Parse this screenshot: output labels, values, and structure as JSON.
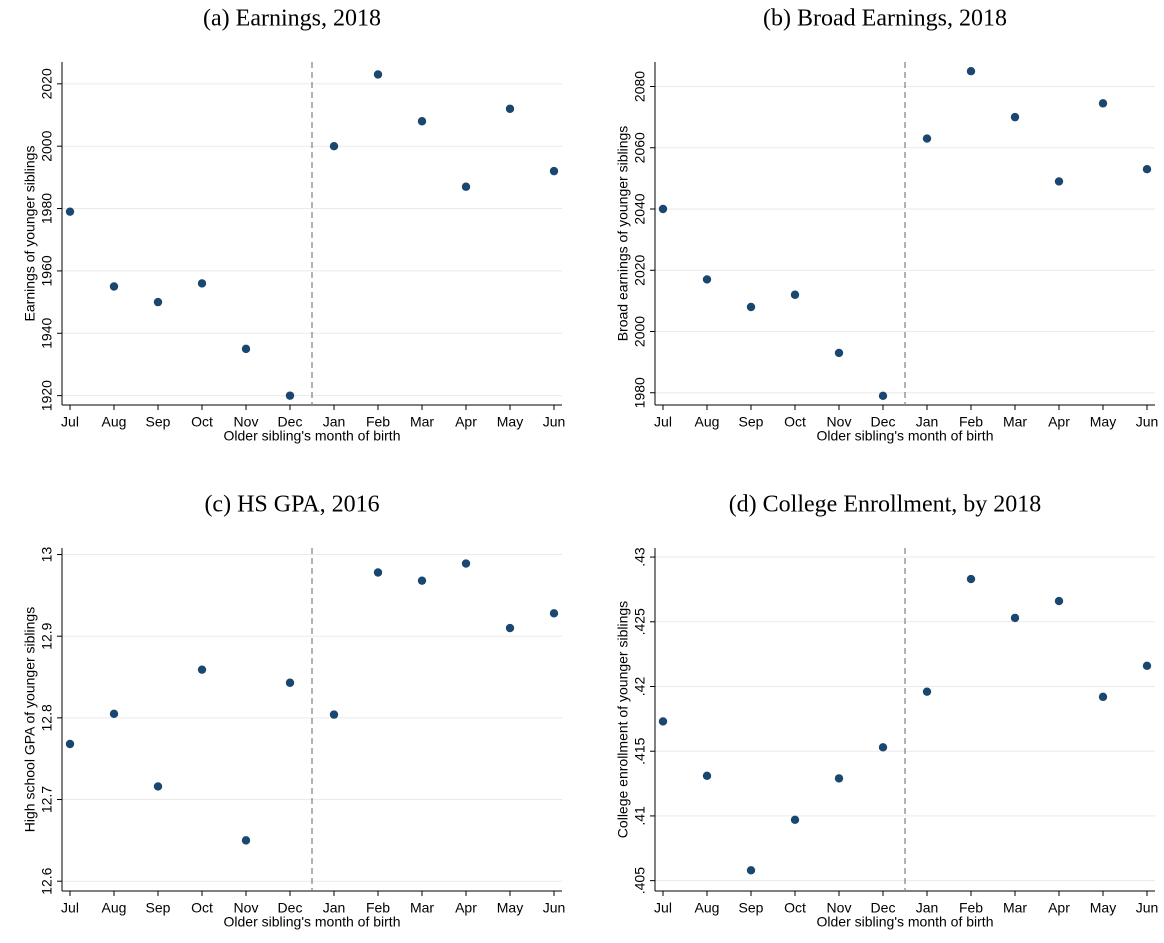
{
  "chart_data": [
    {
      "type": "scatter",
      "title": "(a) Earnings, 2018",
      "xlabel": "Older sibling's month of birth",
      "ylabel": "Earnings of younger siblings",
      "categories": [
        "Jul",
        "Aug",
        "Sep",
        "Oct",
        "Nov",
        "Dec",
        "Jan",
        "Feb",
        "Mar",
        "Apr",
        "May",
        "Jun"
      ],
      "values": [
        1979,
        1955,
        1950,
        1956,
        1935,
        1920,
        2000,
        2023,
        2008,
        1987,
        2012,
        1992
      ],
      "color": "#1a476f",
      "ylim": [
        1917,
        2027
      ],
      "yticks": [
        1920,
        1940,
        1960,
        1980,
        2000,
        2020
      ],
      "grid": true
    },
    {
      "type": "scatter",
      "title": "(b) Broad Earnings, 2018",
      "xlabel": "Older sibling's month of birth",
      "ylabel": "Broad earnings of younger siblings",
      "categories": [
        "Jul",
        "Aug",
        "Sep",
        "Oct",
        "Nov",
        "Dec",
        "Jan",
        "Feb",
        "Mar",
        "Apr",
        "May",
        "Jun"
      ],
      "values": [
        2040,
        2017,
        2008,
        2012,
        1993,
        1979,
        2063,
        2085,
        2070,
        2049,
        2074.5,
        2053
      ],
      "color": "#1a476f",
      "ylim": [
        1976,
        2088
      ],
      "yticks": [
        1980,
        2000,
        2020,
        2040,
        2060,
        2080
      ],
      "grid": true
    },
    {
      "type": "scatter",
      "title": "(c) HS GPA, 2016",
      "xlabel": "Older sibling's month of birth",
      "ylabel": "High school GPA of younger siblings",
      "categories": [
        "Jul",
        "Aug",
        "Sep",
        "Oct",
        "Nov",
        "Dec",
        "Jan",
        "Feb",
        "Mar",
        "Apr",
        "May",
        "Jun"
      ],
      "values": [
        12.768,
        12.805,
        12.716,
        12.859,
        12.65,
        12.843,
        12.804,
        12.978,
        12.968,
        12.989,
        12.91,
        12.928
      ],
      "color": "#1a476f",
      "ylim": [
        12.588,
        13.008
      ],
      "yticks": [
        12.6,
        12.7,
        12.8,
        12.9,
        13
      ],
      "grid": true
    },
    {
      "type": "scatter",
      "title": "(d) College Enrollment, by 2018",
      "xlabel": "Older sibling's month of birth",
      "ylabel": "College enrollment of younger siblings",
      "categories": [
        "Jul",
        "Aug",
        "Sep",
        "Oct",
        "Nov",
        "Dec",
        "Jan",
        "Feb",
        "Mar",
        "Apr",
        "May",
        "Jun"
      ],
      "values": [
        0.4173,
        0.4131,
        0.4058,
        0.4097,
        0.4129,
        0.4153,
        0.4196,
        0.4283,
        0.4253,
        0.4266,
        0.4192,
        0.4216
      ],
      "color": "#1a476f",
      "ylim": [
        0.4042,
        0.4307
      ],
      "yticks": [
        {
          "value": 0.405,
          "label": ".405"
        },
        {
          "value": 0.41,
          "label": ".41"
        },
        {
          "value": 0.415,
          "label": ".415"
        },
        {
          "value": 0.42,
          "label": ".42"
        },
        {
          "value": 0.425,
          "label": ".425"
        },
        {
          "value": 0.43,
          "label": ".43"
        }
      ],
      "grid": true
    }
  ]
}
